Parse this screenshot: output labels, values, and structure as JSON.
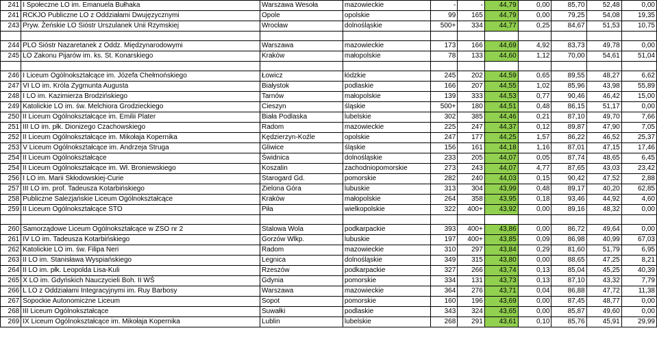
{
  "score_bg": "#92d050",
  "rows": [
    {
      "r": "241",
      "name": "I Społeczne LO im. Emanuela Bułhaka",
      "city": "Warszawa Wesoła",
      "reg": "mazowieckie",
      "n1": "-",
      "n2": "-",
      "s": "44,79",
      "v1": "0,00",
      "v2": "85,70",
      "v3": "52,48",
      "v4": "0,00"
    },
    {
      "r": "241",
      "name": "RCKJO Publiczne LO z Oddziałami Dwujęzycznymi",
      "city": "Opole",
      "reg": "opolskie",
      "n1": "99",
      "n2": "165",
      "s": "44,79",
      "v1": "0,00",
      "v2": "79,25",
      "v3": "54,08",
      "v4": "19,35"
    },
    {
      "r": "243",
      "name": "Pryw. Żeńskie LO Sióstr Urszulanek Unii Rzymskiej",
      "city": "Wrocław",
      "reg": "dolnośląskie",
      "n1": "500+",
      "n2": "334",
      "s": "44,77",
      "v1": "0,25",
      "v2": "84,67",
      "v3": "51,53",
      "v4": "10,75"
    },
    {
      "spacer": true
    },
    {
      "r": "244",
      "name": "PLO Sióstr Nazaretanek z Oddz. Międzynarodowymi",
      "city": "Warszawa",
      "reg": "mazowieckie",
      "n1": "173",
      "n2": "166",
      "s": "44,69",
      "v1": "4,92",
      "v2": "83,73",
      "v3": "49,78",
      "v4": "0,00"
    },
    {
      "r": "245",
      "name": "LO Zakonu Pijarów im. ks. St. Konarskiego",
      "city": "Kraków",
      "reg": "małopolskie",
      "n1": "78",
      "n2": "133",
      "s": "44,60",
      "v1": "1,12",
      "v2": "70,00",
      "v3": "54,61",
      "v4": "51,04"
    },
    {
      "spacer": true
    },
    {
      "r": "246",
      "name": "I Liceum Ogólnokształcące im. Józefa Chełmońskiego",
      "city": "Łowicz",
      "reg": "łódzkie",
      "n1": "245",
      "n2": "202",
      "s": "44,59",
      "v1": "0,65",
      "v2": "89,55",
      "v3": "48,27",
      "v4": "6,62"
    },
    {
      "r": "247",
      "name": "VI LO im. Króla Zygmunta Augusta",
      "city": "Białystok",
      "reg": "podlaskie",
      "n1": "166",
      "n2": "207",
      "s": "44,55",
      "v1": "1,02",
      "v2": "85,96",
      "v3": "43,98",
      "v4": "55,89"
    },
    {
      "r": "248",
      "name": "I LO im. Kazimierza Brodzińskiego",
      "city": "Tarnów",
      "reg": "małopolskie",
      "n1": "139",
      "n2": "333",
      "s": "44,53",
      "v1": "0,77",
      "v2": "90,46",
      "v3": "46,42",
      "v4": "15,00"
    },
    {
      "r": "249",
      "name": "Katolickie LO im. św. Melchiora Grodzieckiego",
      "city": "Cieszyn",
      "reg": "śląskie",
      "n1": "500+",
      "n2": "180",
      "s": "44,51",
      "v1": "0,48",
      "v2": "86,15",
      "v3": "51,17",
      "v4": "0,00"
    },
    {
      "r": "250",
      "name": "II Liceum Ogólnokształcące im. Emilii Plater",
      "city": "Biała Podlaska",
      "reg": "lubelskie",
      "n1": "302",
      "n2": "385",
      "s": "44,46",
      "v1": "0,21",
      "v2": "87,10",
      "v3": "49,70",
      "v4": "7,66"
    },
    {
      "r": "251",
      "name": "III LO im. płk. Dionizego Czachowskiego",
      "city": "Radom",
      "reg": "mazowieckie",
      "n1": "225",
      "n2": "247",
      "s": "44,37",
      "v1": "0,12",
      "v2": "89,87",
      "v3": "47,90",
      "v4": "7,05"
    },
    {
      "r": "252",
      "name": "II Liceum Ogólnokształcące im. Mikołaja Kopernika",
      "city": "Kędzierzyn-Koźle",
      "reg": "opolskie",
      "n1": "247",
      "n2": "177",
      "s": "44,25",
      "v1": "1,57",
      "v2": "86,22",
      "v3": "46,52",
      "v4": "25,37"
    },
    {
      "r": "253",
      "name": "V Liceum Ogólnokształcące im. Andrzeja Struga",
      "city": "Gliwice",
      "reg": "śląskie",
      "n1": "156",
      "n2": "161",
      "s": "44,18",
      "v1": "1,16",
      "v2": "87,01",
      "v3": "47,15",
      "v4": "17,46"
    },
    {
      "r": "254",
      "name": "II Liceum Ogólnokształcące",
      "city": "Świdnica",
      "reg": "dolnośląskie",
      "n1": "233",
      "n2": "205",
      "s": "44,07",
      "v1": "0,05",
      "v2": "87,74",
      "v3": "48,65",
      "v4": "6,45"
    },
    {
      "r": "254",
      "name": "II Liceum Ogólnokształcące im. Wł. Broniewskiego",
      "city": "Koszalin",
      "reg": "zachodniopomorskie",
      "n1": "273",
      "n2": "243",
      "s": "44,07",
      "v1": "4,77",
      "v2": "87,65",
      "v3": "43,03",
      "v4": "23,42"
    },
    {
      "r": "256",
      "name": "I LO im. Marii Skłodowskiej-Curie",
      "city": "Starogard Gd.",
      "reg": "pomorskie",
      "n1": "282",
      "n2": "240",
      "s": "44,03",
      "v1": "0,15",
      "v2": "90,42",
      "v3": "47,52",
      "v4": "2,88"
    },
    {
      "r": "257",
      "name": "III LO im. prof. Tadeusza Kotarbińskiego",
      "city": "Zielona Góra",
      "reg": "lubuskie",
      "n1": "313",
      "n2": "304",
      "s": "43,99",
      "v1": "0,48",
      "v2": "89,17",
      "v3": "40,20",
      "v4": "62,85"
    },
    {
      "r": "258",
      "name": "Publiczne Salezjańskie Liceum Ogólnokształcące",
      "city": "Kraków",
      "reg": "małopolskie",
      "n1": "264",
      "n2": "358",
      "s": "43,95",
      "v1": "0,18",
      "v2": "93,46",
      "v3": "44,92",
      "v4": "4,60"
    },
    {
      "r": "259",
      "name": "II Liceum Ogólnokształcące STO",
      "city": "Piła",
      "reg": "wielkopolskie",
      "n1": "322",
      "n2": "400+",
      "s": "43,92",
      "v1": "0,00",
      "v2": "89,16",
      "v3": "48,32",
      "v4": "0,00"
    },
    {
      "spacer": true
    },
    {
      "r": "260",
      "name": "Samorządowe Liceum Ogólnokształcące w ZSO nr 2",
      "city": "Stalowa Wola",
      "reg": "podkarpackie",
      "n1": "393",
      "n2": "400+",
      "s": "43,86",
      "v1": "0,00",
      "v2": "86,72",
      "v3": "49,64",
      "v4": "0,00"
    },
    {
      "r": "261",
      "name": "IV LO im. Tadeusza Kotarbińskiego",
      "city": "Gorzów Wlkp.",
      "reg": "lubuskie",
      "n1": "197",
      "n2": "400+",
      "s": "43,85",
      "v1": "0,09",
      "v2": "86,98",
      "v3": "40,99",
      "v4": "67,03"
    },
    {
      "r": "262",
      "name": "Katolickie LO im. św. Filipa Neri",
      "city": "Radom",
      "reg": "mazowieckie",
      "n1": "310",
      "n2": "297",
      "s": "43,84",
      "v1": "0,29",
      "v2": "81,60",
      "v3": "51,79",
      "v4": "6,95"
    },
    {
      "r": "263",
      "name": "II LO im. Stanisława Wyspiańskiego",
      "city": "Legnica",
      "reg": "dolnośląskie",
      "n1": "349",
      "n2": "315",
      "s": "43,80",
      "v1": "0,00",
      "v2": "88,65",
      "v3": "47,25",
      "v4": "8,21"
    },
    {
      "r": "264",
      "name": "II LO im. płk. Leopolda Lisa-Kuli",
      "city": "Rzeszów",
      "reg": "podkarpackie",
      "n1": "327",
      "n2": "266",
      "s": "43,74",
      "v1": "0,13",
      "v2": "85,04",
      "v3": "45,25",
      "v4": "40,39"
    },
    {
      "r": "265",
      "name": "X LO im. Gdyńskich Nauczycieli Boh. II WŚ",
      "city": "Gdynia",
      "reg": "pomorskie",
      "n1": "334",
      "n2": "131",
      "s": "43,73",
      "v1": "0,13",
      "v2": "87,10",
      "v3": "43,32",
      "v4": "7,79"
    },
    {
      "r": "266",
      "name": "L LO z Oddziałami Integracyjnymi im. Ruy Barbosy",
      "city": "Warszawa",
      "reg": "mazowieckie",
      "n1": "364",
      "n2": "276",
      "s": "43,71",
      "v1": "0,04",
      "v2": "86,88",
      "v3": "47,72",
      "v4": "11,38"
    },
    {
      "r": "267",
      "name": "Sopockie Autonomiczne Liceum",
      "city": "Sopot",
      "reg": "pomorskie",
      "n1": "160",
      "n2": "196",
      "s": "43,69",
      "v1": "0,00",
      "v2": "87,45",
      "v3": "48,77",
      "v4": "0,00"
    },
    {
      "r": "268",
      "name": "III Liceum Ogólnokształcące",
      "city": "Suwałki",
      "reg": "podlaskie",
      "n1": "343",
      "n2": "324",
      "s": "43,65",
      "v1": "0,00",
      "v2": "85,87",
      "v3": "49,60",
      "v4": "0,00"
    },
    {
      "r": "269",
      "name": "IX Liceum Ogólnokształcące im. Mikołaja Kopernika",
      "city": "Lublin",
      "reg": "lubelskie",
      "n1": "268",
      "n2": "291",
      "s": "43,61",
      "v1": "0,10",
      "v2": "85,76",
      "v3": "45,91",
      "v4": "29,99"
    }
  ]
}
